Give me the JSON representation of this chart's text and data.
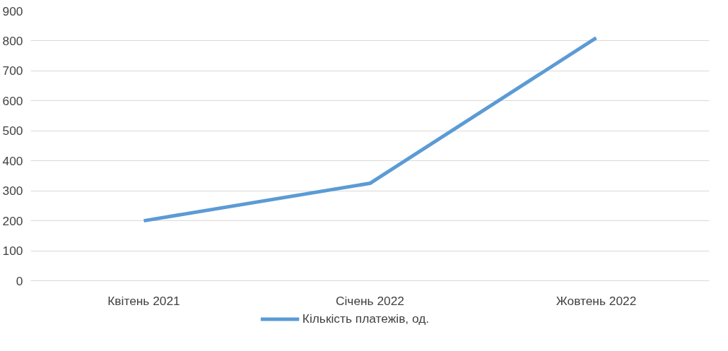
{
  "chart_data": {
    "type": "line",
    "categories": [
      "Квітень 2021",
      "Січень 2022",
      "Жовтень 2022"
    ],
    "series": [
      {
        "name": "Кількість платежів, од.",
        "color": "#5b9bd5",
        "values": [
          200,
          325,
          810
        ]
      }
    ],
    "ylim": [
      0,
      900
    ],
    "yticks": [
      0,
      100,
      200,
      300,
      400,
      500,
      600,
      700,
      800,
      900
    ],
    "grid": "y",
    "legend": "bottom",
    "marker": "none",
    "line_style": "solid"
  }
}
